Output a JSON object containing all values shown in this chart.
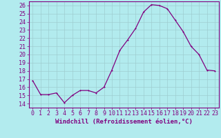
{
  "x": [
    0,
    1,
    2,
    3,
    4,
    5,
    6,
    7,
    8,
    9,
    10,
    11,
    12,
    13,
    14,
    15,
    16,
    17,
    18,
    19,
    20,
    21,
    22,
    23
  ],
  "y": [
    16.8,
    15.1,
    15.1,
    15.3,
    14.1,
    15.0,
    15.6,
    15.6,
    15.3,
    16.0,
    18.1,
    20.5,
    21.8,
    23.2,
    25.2,
    26.1,
    26.0,
    25.6,
    24.2,
    22.8,
    21.0,
    20.0,
    18.1,
    18.0
  ],
  "line_color": "#800080",
  "marker_color": "#800080",
  "bg_color": "#b2ebee",
  "grid_color": "#9ecdd0",
  "xlabel": "Windchill (Refroidissement éolien,°C)",
  "ylim_min": 13.5,
  "ylim_max": 26.5,
  "xlim_min": -0.5,
  "xlim_max": 23.5,
  "yticks": [
    14,
    15,
    16,
    17,
    18,
    19,
    20,
    21,
    22,
    23,
    24,
    25,
    26
  ],
  "xticks": [
    0,
    1,
    2,
    3,
    4,
    5,
    6,
    7,
    8,
    9,
    10,
    11,
    12,
    13,
    14,
    15,
    16,
    17,
    18,
    19,
    20,
    21,
    22,
    23
  ],
  "xlabel_fontsize": 6.5,
  "tick_fontsize": 6.0,
  "text_color": "#800080",
  "spine_color": "#800080",
  "linewidth": 0.9,
  "markersize": 2.0
}
